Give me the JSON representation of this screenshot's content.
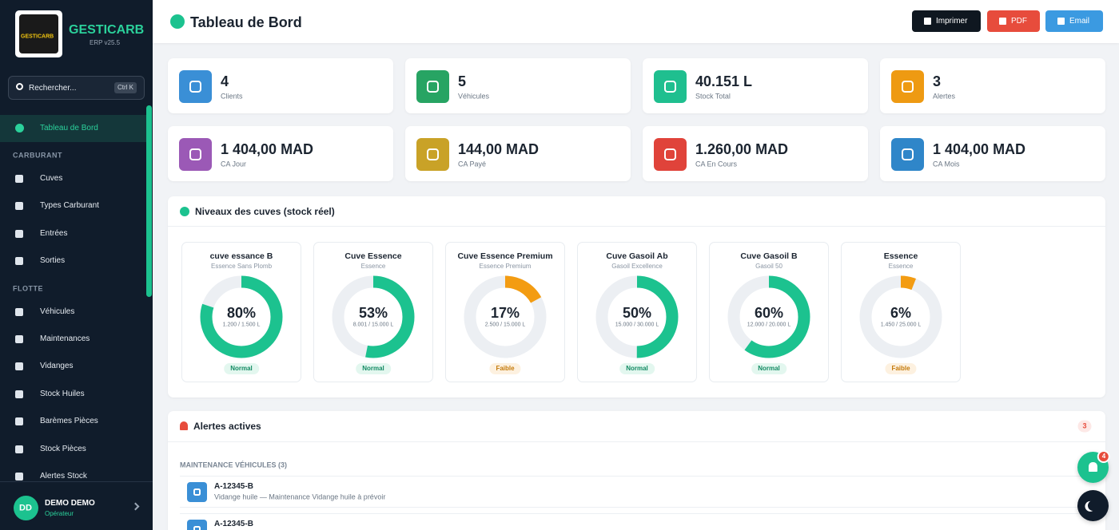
{
  "sidebar": {
    "logo_text": "GESTICARB",
    "brand": "GESTICARB",
    "version": "ERP v25.5",
    "search": "Rechercher...",
    "shortcut": "Ctrl K",
    "active_item": "Tableau de Bord",
    "sections": [
      {
        "title": "CARBURANT",
        "items": [
          "Cuves",
          "Types Carburant",
          "Entrées",
          "Sorties"
        ]
      },
      {
        "title": "FLOTTE",
        "items": [
          "Véhicules",
          "Maintenances",
          "Vidanges",
          "Stock Huiles",
          "Barèmes Pièces",
          "Stock Pièces",
          "Alertes Stock"
        ]
      }
    ],
    "user": {
      "initials": "DD",
      "name": "DEMO DEMO",
      "role": "Opérateur"
    }
  },
  "header": {
    "title": "Tableau de Bord",
    "buttons": [
      "Imprimer",
      "PDF",
      "Email"
    ]
  },
  "stats": [
    {
      "value": "4",
      "label": "Clients",
      "color": "#3a8fd6"
    },
    {
      "value": "5",
      "label": "Véhicules",
      "color": "#27a463"
    },
    {
      "value": "40.151 L",
      "label": "Stock Total",
      "color": "#1fbf8f"
    },
    {
      "value": "3",
      "label": "Alertes",
      "color": "#ee9a12"
    },
    {
      "value": "1 404,00 MAD",
      "label": "CA Jour",
      "color": "#9b59b6"
    },
    {
      "value": "144,00 MAD",
      "label": "CA Payé",
      "color": "#c9a227"
    },
    {
      "value": "1.260,00 MAD",
      "label": "CA En Cours",
      "color": "#e0433a"
    },
    {
      "value": "1 404,00 MAD",
      "label": "CA Mois",
      "color": "#2f86c9"
    }
  ],
  "tanks": {
    "title": "Niveaux des cuves (stock réel)",
    "items": [
      {
        "name": "cuve essance B",
        "fuel": "Essence Sans Plomb",
        "percent": 80,
        "percent_label": "80%",
        "volume": "1.200 / 1.500 L",
        "status": "Normal",
        "color": "#1cc28f"
      },
      {
        "name": "Cuve Essence",
        "fuel": "Essence",
        "percent": 53,
        "percent_label": "53%",
        "volume": "8.001 / 15.000 L",
        "status": "Normal",
        "color": "#1cc28f"
      },
      {
        "name": "Cuve Essence Premium",
        "fuel": "Essence Premium",
        "percent": 17,
        "percent_label": "17%",
        "volume": "2.500 / 15.000 L",
        "status": "Faible",
        "color": "#f39c12"
      },
      {
        "name": "Cuve Gasoil Ab",
        "fuel": "Gasoil Excellence",
        "percent": 50,
        "percent_label": "50%",
        "volume": "15.000 / 30.000 L",
        "status": "Normal",
        "color": "#1cc28f"
      },
      {
        "name": "Cuve Gasoil B",
        "fuel": "Gasoil 50",
        "percent": 60,
        "percent_label": "60%",
        "volume": "12.000 / 20.000 L",
        "status": "Normal",
        "color": "#1cc28f"
      },
      {
        "name": "Essence",
        "fuel": "Essence",
        "percent": 6,
        "percent_label": "6%",
        "volume": "1.450 / 25.000 L",
        "status": "Faible",
        "color": "#f39c12"
      }
    ]
  },
  "alerts": {
    "title": "Alertes actives",
    "count": "3",
    "group": "MAINTENANCE VÉHICULES (3)",
    "items": [
      {
        "title": "A-12345-B",
        "detail": "Vidange huile — Maintenance Vidange huile à prévoir"
      },
      {
        "title": "A-12345-B"
      }
    ]
  },
  "notifications": "4"
}
